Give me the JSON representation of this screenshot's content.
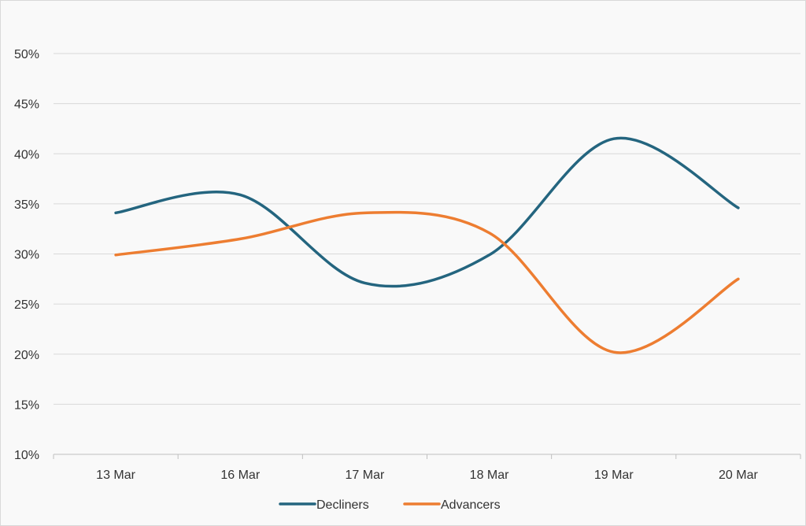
{
  "chart_data": {
    "type": "line",
    "title": "",
    "xlabel": "",
    "ylabel": "",
    "categories": [
      "13 Mar",
      "16 Mar",
      "17 Mar",
      "18 Mar",
      "19 Mar",
      "20 Mar"
    ],
    "ylim": [
      10,
      50
    ],
    "yticks": [
      10,
      15,
      20,
      25,
      30,
      35,
      40,
      45,
      50
    ],
    "ytick_labels": [
      "10%",
      "15%",
      "20%",
      "25%",
      "30%",
      "35%",
      "40%",
      "45%",
      "50%"
    ],
    "grid": true,
    "legend_position": "bottom",
    "smooth": true,
    "series": [
      {
        "name": "Decliners",
        "color": "#24657f",
        "values": [
          34.1,
          35.9,
          27.1,
          29.9,
          41.5,
          34.6
        ]
      },
      {
        "name": "Advancers",
        "color": "#ed7d31",
        "values": [
          29.9,
          31.5,
          34.1,
          32.1,
          20.2,
          27.5
        ]
      }
    ]
  }
}
